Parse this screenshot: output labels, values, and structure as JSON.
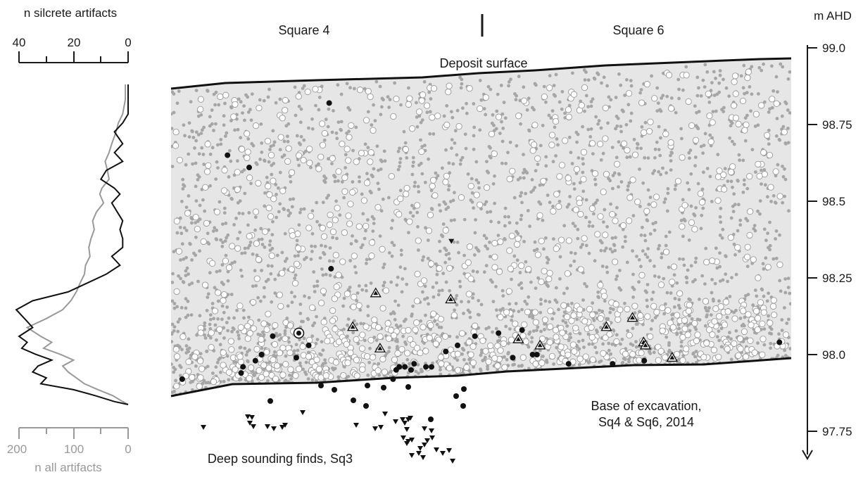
{
  "left_panel": {
    "top_axis_title": "n silcrete artifacts",
    "top_ticks": [
      "40",
      "20",
      "0"
    ],
    "bottom_axis_title": "n all artifacts",
    "bottom_ticks": [
      "200",
      "100",
      "0"
    ],
    "silcrete_color": "#111111",
    "all_color": "#999999"
  },
  "section": {
    "square_left_label": "Square 4",
    "square_right_label": "Square 6",
    "deposit_surface_label": "Deposit surface",
    "base_label_line1": "Base of excavation,",
    "base_label_line2": "Sq4 & Sq6, 2014",
    "deep_label": "Deep sounding finds, Sq3",
    "fill_color": "#e6e6e6",
    "small_dot_color": "#a6a6a6"
  },
  "right_axis": {
    "unit_label": "m AHD",
    "ticks": [
      "99.0",
      "98.75",
      "98.5",
      "98.25",
      "98.0",
      "97.75"
    ]
  },
  "chart_data": [
    {
      "type": "line",
      "title": "",
      "xlabel": "n silcrete artifacts",
      "ylabel": "m AHD",
      "xlim": [
        40,
        0
      ],
      "ylim": [
        97.87,
        98.95
      ],
      "series": [
        {
          "name": "n silcrete artifacts",
          "x": [
            0,
            0,
            0,
            2,
            5,
            2,
            5,
            2,
            8,
            10,
            5,
            3,
            6,
            4,
            2,
            3,
            2,
            2,
            6,
            3,
            8,
            15,
            22,
            35,
            41,
            38,
            35,
            40,
            37,
            39,
            34,
            28,
            33,
            35,
            30,
            32,
            20,
            12,
            5,
            0
          ],
          "y": [
            98.95,
            98.9,
            98.85,
            98.82,
            98.79,
            98.75,
            98.72,
            98.69,
            98.66,
            98.63,
            98.6,
            98.58,
            98.55,
            98.52,
            98.49,
            98.46,
            98.43,
            98.4,
            98.37,
            98.34,
            98.31,
            98.28,
            98.25,
            98.22,
            98.19,
            98.16,
            98.13,
            98.1,
            98.08,
            98.06,
            98.04,
            98.02,
            98.0,
            97.98,
            97.96,
            97.94,
            97.92,
            97.9,
            97.88,
            97.87
          ]
        }
      ]
    },
    {
      "type": "line",
      "title": "",
      "xlabel": "n all artifacts",
      "ylabel": "m AHD",
      "xlim": [
        200,
        0
      ],
      "ylim": [
        97.87,
        98.95
      ],
      "series": [
        {
          "name": "n all artifacts",
          "x": [
            5,
            5,
            10,
            18,
            22,
            30,
            35,
            42,
            38,
            35,
            48,
            52,
            45,
            58,
            65,
            62,
            68,
            72,
            70,
            78,
            80,
            88,
            95,
            105,
            120,
            150,
            185,
            160,
            140,
            155,
            125,
            100,
            120,
            110,
            95,
            80,
            55,
            28,
            10,
            0
          ],
          "y": [
            98.95,
            98.9,
            98.85,
            98.82,
            98.79,
            98.75,
            98.72,
            98.69,
            98.66,
            98.63,
            98.6,
            98.58,
            98.55,
            98.52,
            98.49,
            98.46,
            98.43,
            98.4,
            98.37,
            98.34,
            98.31,
            98.28,
            98.25,
            98.22,
            98.19,
            98.16,
            98.13,
            98.1,
            98.08,
            98.06,
            98.04,
            98.02,
            98.0,
            97.98,
            97.96,
            97.94,
            97.92,
            97.9,
            97.88,
            97.87
          ]
        }
      ]
    },
    {
      "type": "scatter",
      "title": "",
      "xlabel": "",
      "ylabel": "m AHD",
      "ylim": [
        97.7,
        99.0
      ],
      "series": [
        {
          "name": "",
          "marker": "triangle-outlined",
          "x": [
            0.33,
            0.451,
            0.293,
            0.337,
            0.56,
            0.595,
            0.702,
            0.762,
            0.744,
            0.765,
            0.808
          ],
          "y": [
            98.2,
            98.18,
            98.09,
            98.02,
            98.05,
            98.03,
            98.09,
            98.04,
            98.12,
            98.03,
            97.99
          ]
        },
        {
          "name": "",
          "marker": "filled-circle",
          "x": [
            0.091,
            0.126,
            0.255,
            0.258,
            0.164,
            0.146,
            0.136,
            0.116,
            0.222,
            0.202,
            0.113,
            0.018,
            0.358,
            0.462,
            0.49,
            0.528,
            0.566,
            0.443,
            0.42,
            0.411,
            0.392,
            0.387,
            0.377,
            0.368,
            0.363,
            0.551,
            0.583,
            0.59,
            0.641,
            0.712,
            0.763,
            0.981
          ],
          "y": [
            98.65,
            98.61,
            98.82,
            98.28,
            98.06,
            98.0,
            97.98,
            97.96,
            98.03,
            97.99,
            97.94,
            97.92,
            97.92,
            98.03,
            98.06,
            98.07,
            98.08,
            98.01,
            97.96,
            97.96,
            97.97,
            97.95,
            97.96,
            97.96,
            97.95,
            97.99,
            98.0,
            98.0,
            97.97,
            97.97,
            97.98,
            98.04
          ]
        },
        {
          "name": "",
          "marker": "inverted-triangle",
          "x": [
            0.452
          ],
          "y": [
            98.37
          ]
        },
        {
          "name": "",
          "marker": "circled-dot",
          "x": [
            0.206
          ],
          "y": [
            98.07
          ]
        }
      ]
    }
  ]
}
